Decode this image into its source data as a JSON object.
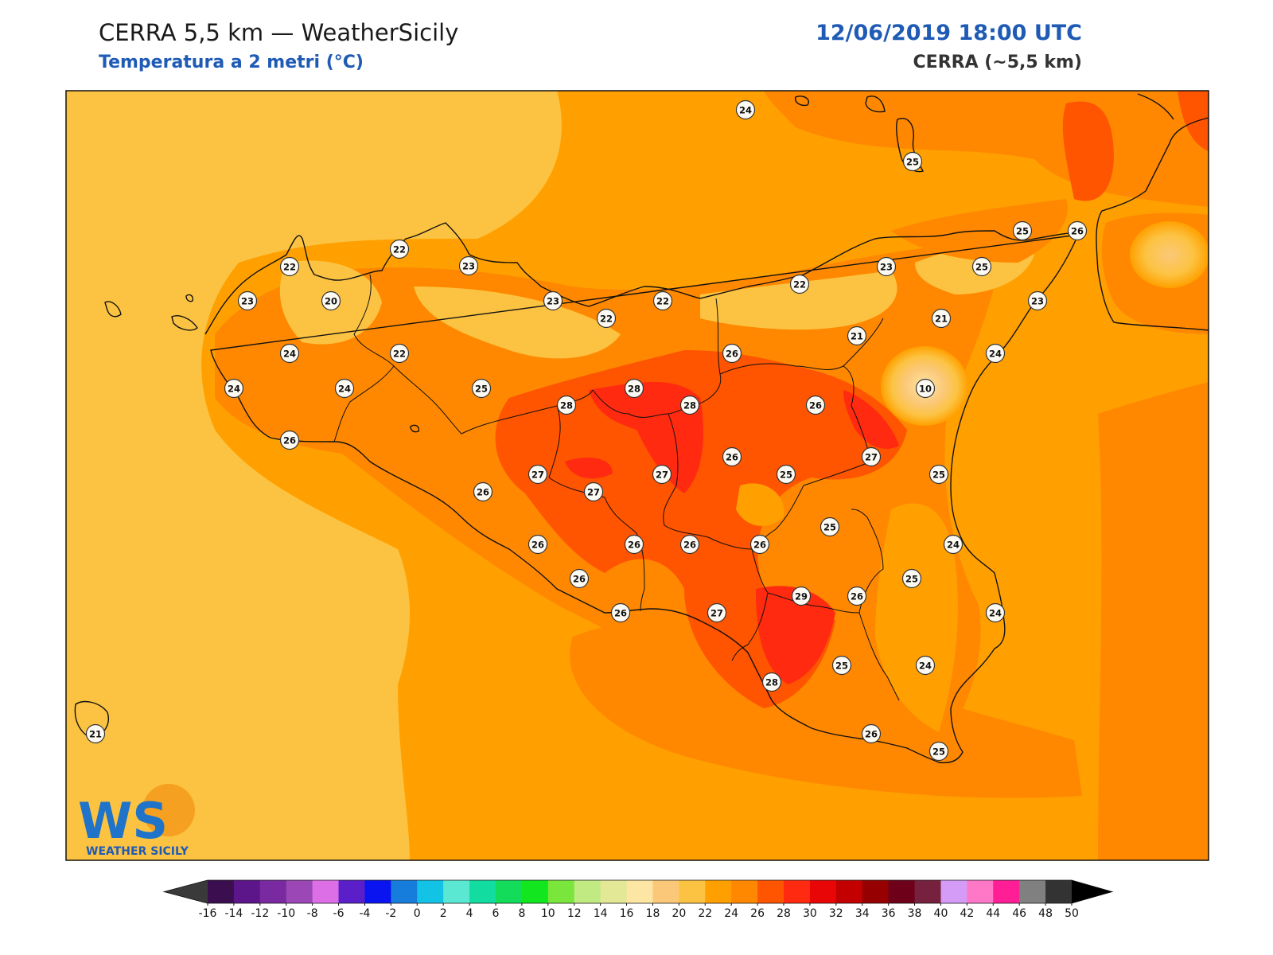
{
  "header": {
    "title_left": "CERRA 5,5 km — WeatherSicily",
    "subtitle_left": "Temperatura a 2 metri (°C)",
    "title_right": "12/06/2019 18:00 UTC",
    "subtitle_right": "CERRA (~5,5 km)"
  },
  "logo": {
    "letters": "WS",
    "name": "WEATHER SICILY"
  },
  "colorbar": {
    "ticks": [
      "-16",
      "-14",
      "-12",
      "-10",
      "-8",
      "-6",
      "-4",
      "-2",
      "0",
      "2",
      "4",
      "6",
      "8",
      "10",
      "12",
      "14",
      "16",
      "18",
      "20",
      "22",
      "24",
      "26",
      "28",
      "30",
      "32",
      "34",
      "36",
      "38",
      "40",
      "42",
      "44",
      "46",
      "48",
      "50"
    ],
    "colors": [
      "#3b0f4f",
      "#5c168a",
      "#7a2aa0",
      "#9b47b5",
      "#dc6fe6",
      "#5a1fc9",
      "#0a14f0",
      "#167ddc",
      "#12c3e6",
      "#5ae8d2",
      "#12dca0",
      "#12dc5a",
      "#12e61e",
      "#7ae63c",
      "#c2ea82",
      "#e2e896",
      "#fde6a3",
      "#fbc879",
      "#fcc342",
      "#ffa000",
      "#ff8800",
      "#ff5400",
      "#ff2a10",
      "#e80606",
      "#c20000",
      "#970000",
      "#6e001a",
      "#76213e",
      "#d49cf6",
      "#ff78c8",
      "#ff1e96",
      "#808080",
      "#333333"
    ]
  },
  "map_points": [
    {
      "v": "24"
    },
    {
      "v": "25"
    },
    {
      "v": "25"
    },
    {
      "v": "26"
    },
    {
      "v": "22"
    },
    {
      "v": "22"
    },
    {
      "v": "23"
    },
    {
      "v": "23"
    },
    {
      "v": "20"
    },
    {
      "v": "23"
    },
    {
      "v": "22"
    },
    {
      "v": "22"
    },
    {
      "v": "22"
    },
    {
      "v": "23"
    },
    {
      "v": "25"
    },
    {
      "v": "21"
    },
    {
      "v": "23"
    },
    {
      "v": "24"
    },
    {
      "v": "22"
    },
    {
      "v": "26"
    },
    {
      "v": "21"
    },
    {
      "v": "24"
    },
    {
      "v": "10"
    },
    {
      "v": "24"
    },
    {
      "v": "25"
    },
    {
      "v": "28"
    },
    {
      "v": "28"
    },
    {
      "v": "28"
    },
    {
      "v": "26"
    },
    {
      "v": "26"
    },
    {
      "v": "24"
    },
    {
      "v": "26"
    },
    {
      "v": "27"
    },
    {
      "v": "27"
    },
    {
      "v": "27"
    },
    {
      "v": "26"
    },
    {
      "v": "25"
    },
    {
      "v": "27"
    },
    {
      "v": "25"
    },
    {
      "v": "25"
    },
    {
      "v": "26"
    },
    {
      "v": "26"
    },
    {
      "v": "26"
    },
    {
      "v": "26"
    },
    {
      "v": "24"
    },
    {
      "v": "26"
    },
    {
      "v": "29"
    },
    {
      "v": "26"
    },
    {
      "v": "25"
    },
    {
      "v": "26"
    },
    {
      "v": "27"
    },
    {
      "v": "24"
    },
    {
      "v": "25"
    },
    {
      "v": "24"
    },
    {
      "v": "28"
    },
    {
      "v": "26"
    },
    {
      "v": "25"
    },
    {
      "v": "21"
    }
  ]
}
